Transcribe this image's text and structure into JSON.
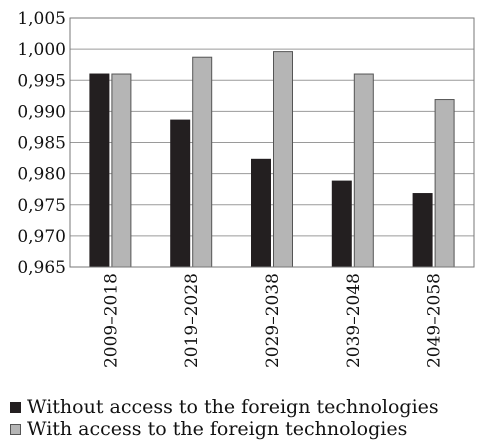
{
  "chart_data": {
    "type": "bar",
    "categories": [
      "2009–2018",
      "2019–2028",
      "2029–2038",
      "2039–2048",
      "2049–2058"
    ],
    "series": [
      {
        "name": "Without access to the foreign technologies",
        "values": [
          0.996,
          0.9886,
          0.9823,
          0.9788,
          0.9768
        ],
        "color": "#231f20"
      },
      {
        "name": "With access to the foreign technologies",
        "values": [
          0.996,
          0.9987,
          0.9996,
          0.996,
          0.9919
        ],
        "color": "#b5b5b5"
      }
    ],
    "ylim": [
      0.965,
      1.005
    ],
    "yticks": [
      "1,005",
      "1,000",
      "0,995",
      "0,990",
      "0,985",
      "0,980",
      "0,975",
      "0,970",
      "0,965"
    ],
    "grid": true,
    "legend_position": "bottom-left"
  }
}
